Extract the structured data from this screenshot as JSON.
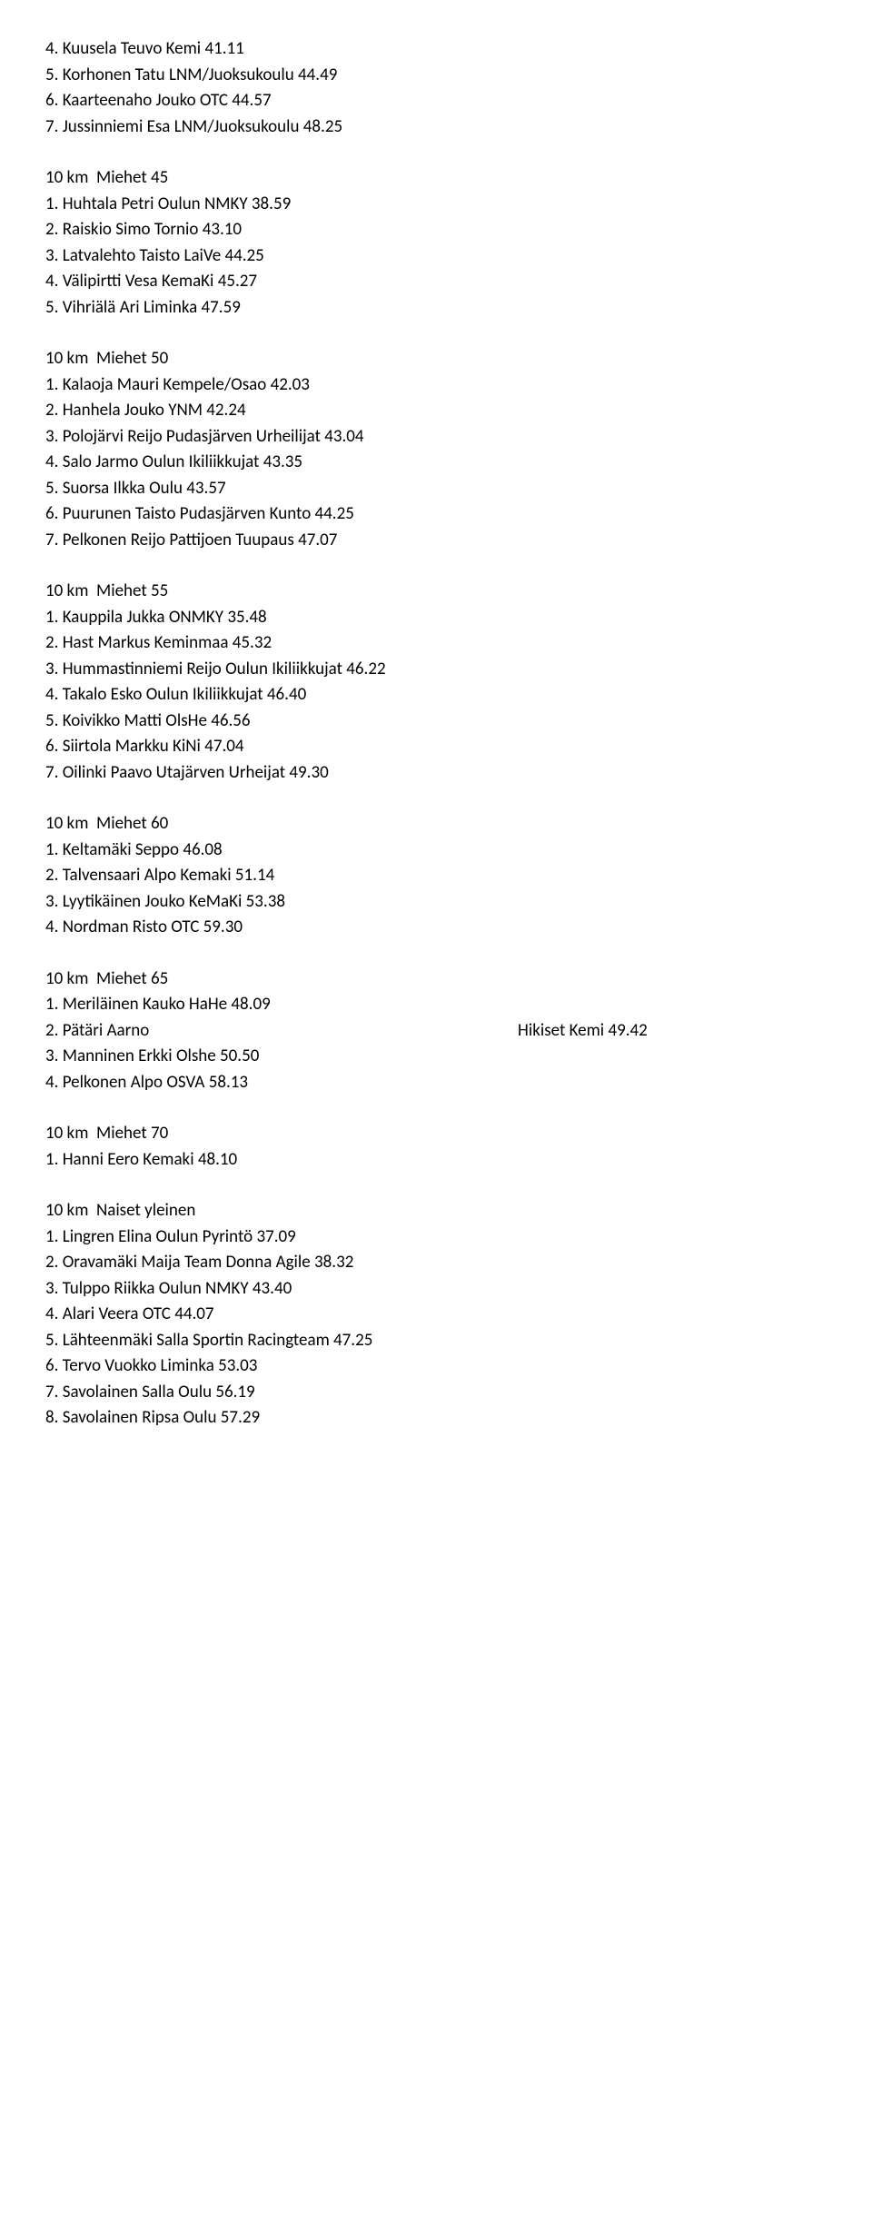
{
  "sections": [
    {
      "lines": [
        "4. Kuusela Teuvo Kemi 41.11",
        "5. Korhonen Tatu LNM/Juoksukoulu 44.49",
        "6. Kaarteenaho Jouko OTC 44.57",
        "7. Jussinniemi Esa LNM/Juoksukoulu 48.25"
      ]
    },
    {
      "lines": [
        "10 km  Miehet 45",
        "1. Huhtala Petri Oulun NMKY 38.59",
        "2. Raiskio Simo Tornio 43.10",
        "3. Latvalehto Taisto LaiVe 44.25",
        "4. Välipirtti Vesa KemaKi 45.27",
        "5. Vihriälä Ari Liminka 47.59"
      ]
    },
    {
      "lines": [
        "10 km  Miehet 50",
        "1. Kalaoja Mauri Kempele/Osao 42.03",
        "2. Hanhela Jouko YNM 42.24",
        "3. Polojärvi Reijo Pudasjärven Urheilijat 43.04",
        "4. Salo Jarmo Oulun Ikiliikkujat 43.35",
        "5. Suorsa Ilkka Oulu 43.57",
        "6. Puurunen Taisto Pudasjärven Kunto 44.25",
        "7. Pelkonen Reijo Pattijoen Tuupaus 47.07"
      ]
    },
    {
      "lines": [
        "10 km  Miehet 55",
        "1. Kauppila Jukka ONMKY 35.48",
        "2. Hast Markus Keminmaa 45.32",
        "3. Hummastinniemi Reijo Oulun Ikiliikkujat 46.22",
        "4. Takalo Esko Oulun Ikiliikkujat 46.40",
        "5. Koivikko Matti OlsHe 46.56",
        "6. Siirtola Markku KiNi 47.04",
        "7. Oilinki Paavo Utajärven Urheijat 49.30"
      ]
    },
    {
      "lines": [
        "10 km  Miehet 60",
        "1. Keltamäki Seppo 46.08",
        "2. Talvensaari Alpo Kemaki 51.14",
        "3. Lyytikäinen Jouko KeMaKi 53.38",
        "4. Nordman Risto OTC 59.30"
      ]
    },
    {
      "lines": [
        "10 km  Miehet 65",
        "1. Meriläinen Kauko HaHe 48.09"
      ],
      "tabbed": {
        "left": "2. Pätäri Aarno",
        "right": "Hikiset Kemi 49.42"
      },
      "lines_after": [
        "3. Manninen Erkki Olshe 50.50",
        "4. Pelkonen Alpo OSVA 58.13"
      ]
    },
    {
      "lines": [
        "10 km  Miehet 70",
        "1. Hanni Eero Kemaki 48.10"
      ]
    },
    {
      "lines": [
        "10 km  Naiset yleinen",
        "1. Lingren Elina Oulun Pyrintö 37.09",
        "2. Oravamäki Maija Team Donna Agile 38.32",
        "3. Tulppo Riikka Oulun NMKY 43.40",
        "4. Alari Veera OTC 44.07",
        "5. Lähteenmäki Salla Sportin Racingteam 47.25",
        "6. Tervo Vuokko Liminka 53.03",
        "7. Savolainen Salla Oulu 56.19",
        "8. Savolainen Ripsa Oulu 57.29"
      ]
    }
  ]
}
